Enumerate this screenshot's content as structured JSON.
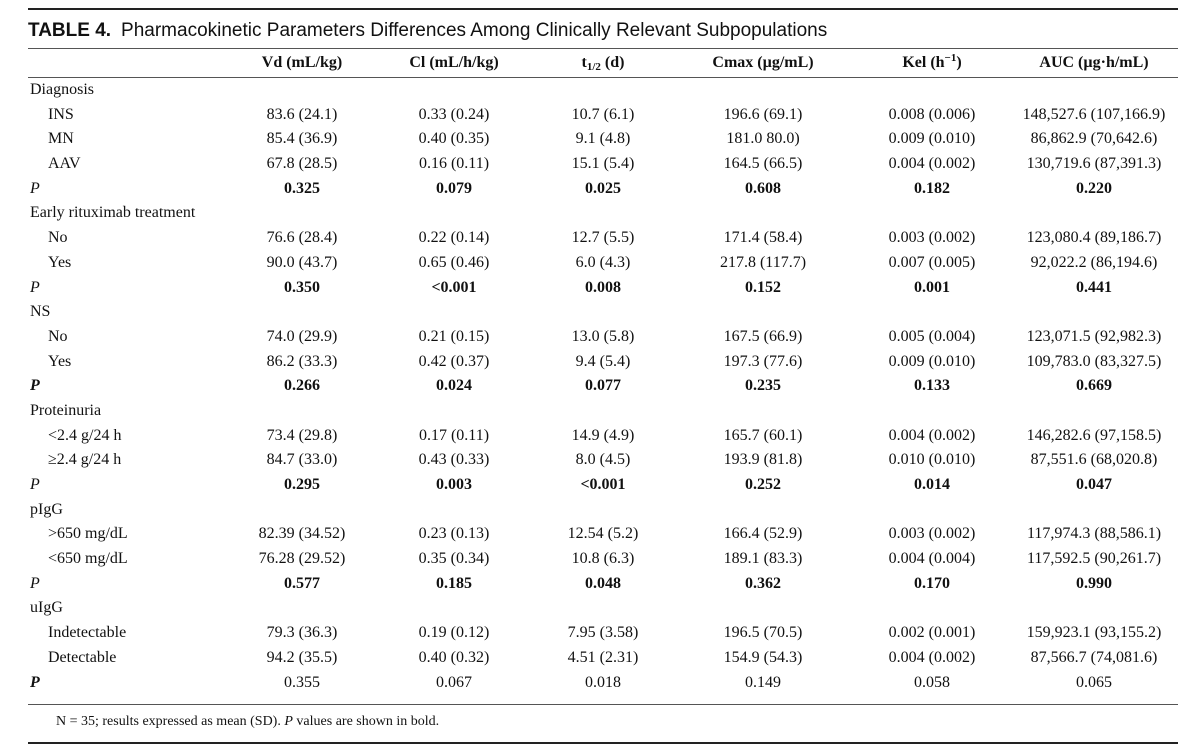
{
  "table": {
    "label": "TABLE 4.",
    "caption": "Pharmacokinetic Parameters Differences Among Clinically Relevant Subpopulations",
    "headers": {
      "vd": "Vd (mL/kg)",
      "cl": "Cl (mL/h/kg)",
      "t_base": "t",
      "t_sub": "1/2",
      "t_unit": " (d)",
      "cmax": "Cmax (µg/mL)",
      "kel_base": "Kel (h",
      "kel_sup": "−1",
      "kel_close": ")",
      "auc": "AUC (µg·h/mL)"
    },
    "groups": [
      {
        "name": "Diagnosis",
        "rows": [
          {
            "label": "INS",
            "values": [
              "83.6 (24.1)",
              "0.33 (0.24)",
              "10.7 (6.1)",
              "196.6 (69.1)",
              "0.008 (0.006)",
              "148,527.6 (107,166.9)"
            ]
          },
          {
            "label": "MN",
            "values": [
              "85.4 (36.9)",
              "0.40 (0.35)",
              "9.1 (4.8)",
              "181.0 80.0)",
              "0.009 (0.010)",
              "86,862.9 (70,642.6)"
            ]
          },
          {
            "label": "AAV",
            "values": [
              "67.8 (28.5)",
              "0.16 (0.11)",
              "15.1 (5.4)",
              "164.5 (66.5)",
              "0.004 (0.002)",
              "130,719.6 (87,391.3)"
            ]
          }
        ],
        "p": {
          "label": "P",
          "values": [
            "0.325",
            "0.079",
            "0.025",
            "0.608",
            "0.182",
            "0.220"
          ]
        }
      },
      {
        "name": "Early rituximab treatment",
        "rows": [
          {
            "label": "No",
            "values": [
              "76.6 (28.4)",
              "0.22 (0.14)",
              "12.7 (5.5)",
              "171.4 (58.4)",
              "0.003 (0.002)",
              "123,080.4 (89,186.7)"
            ]
          },
          {
            "label": "Yes",
            "values": [
              "90.0 (43.7)",
              "0.65 (0.46)",
              "6.0 (4.3)",
              "217.8 (117.7)",
              "0.007 (0.005)",
              "92,022.2 (86,194.6)"
            ]
          }
        ],
        "p": {
          "label": "P",
          "values": [
            "0.350",
            "<0.001",
            "0.008",
            "0.152",
            "0.001",
            "0.441"
          ]
        }
      },
      {
        "name": "NS",
        "rows": [
          {
            "label": "No",
            "values": [
              "74.0 (29.9)",
              "0.21 (0.15)",
              "13.0 (5.8)",
              "167.5 (66.9)",
              "0.005 (0.004)",
              "123,071.5 (92,982.3)"
            ]
          },
          {
            "label": "Yes",
            "values": [
              "86.2 (33.3)",
              "0.42 (0.37)",
              "9.4 (5.4)",
              "197.3 (77.6)",
              "0.009 (0.010)",
              "109,783.0 (83,327.5)"
            ]
          }
        ],
        "p": {
          "label": "P",
          "values": [
            "0.266",
            "0.024",
            "0.077",
            "0.235",
            "0.133",
            "0.669"
          ]
        }
      },
      {
        "name": "Proteinuria",
        "rows": [
          {
            "label": "<2.4 g/24 h",
            "values": [
              "73.4 (29.8)",
              "0.17 (0.11)",
              "14.9 (4.9)",
              "165.7 (60.1)",
              "0.004 (0.002)",
              "146,282.6 (97,158.5)"
            ]
          },
          {
            "label": "≥2.4 g/24 h",
            "values": [
              "84.7 (33.0)",
              "0.43 (0.33)",
              "8.0 (4.5)",
              "193.9 (81.8)",
              "0.010 (0.010)",
              "87,551.6 (68,020.8)"
            ]
          }
        ],
        "p": {
          "label": "P",
          "values": [
            "0.295",
            "0.003",
            "<0.001",
            "0.252",
            "0.014",
            "0.047"
          ]
        }
      },
      {
        "name": "pIgG",
        "rows": [
          {
            "label": ">650 mg/dL",
            "values": [
              "82.39 (34.52)",
              "0.23 (0.13)",
              "12.54 (5.2)",
              "166.4 (52.9)",
              "0.003 (0.002)",
              "117,974.3 (88,586.1)"
            ]
          },
          {
            "label": "<650 mg/dL",
            "values": [
              "76.28 (29.52)",
              "0.35 (0.34)",
              "10.8 (6.3)",
              "189.1 (83.3)",
              "0.004 (0.004)",
              "117,592.5 (90,261.7)"
            ]
          }
        ],
        "p": {
          "label": "P",
          "values": [
            "0.577",
            "0.185",
            "0.048",
            "0.362",
            "0.170",
            "0.990"
          ]
        }
      },
      {
        "name": "uIgG",
        "rows": [
          {
            "label": "Indetectable",
            "values": [
              "79.3 (36.3)",
              "0.19 (0.12)",
              "7.95 (3.58)",
              "196.5 (70.5)",
              "0.002 (0.001)",
              "159,923.1 (93,155.2)"
            ]
          },
          {
            "label": "Detectable",
            "values": [
              "94.2 (35.5)",
              "0.40 (0.32)",
              "4.51 (2.31)",
              "154.9 (54.3)",
              "0.004 (0.002)",
              "87,566.7 (74,081.6)"
            ]
          }
        ],
        "p": {
          "label": "P",
          "values": [
            "0.355",
            "0.067",
            "0.018",
            "0.149",
            "0.058",
            "0.065"
          ]
        }
      }
    ],
    "footnote_a": "N = 35; results expressed as mean (SD). ",
    "footnote_p": "P",
    "footnote_b": " values are shown in bold."
  }
}
